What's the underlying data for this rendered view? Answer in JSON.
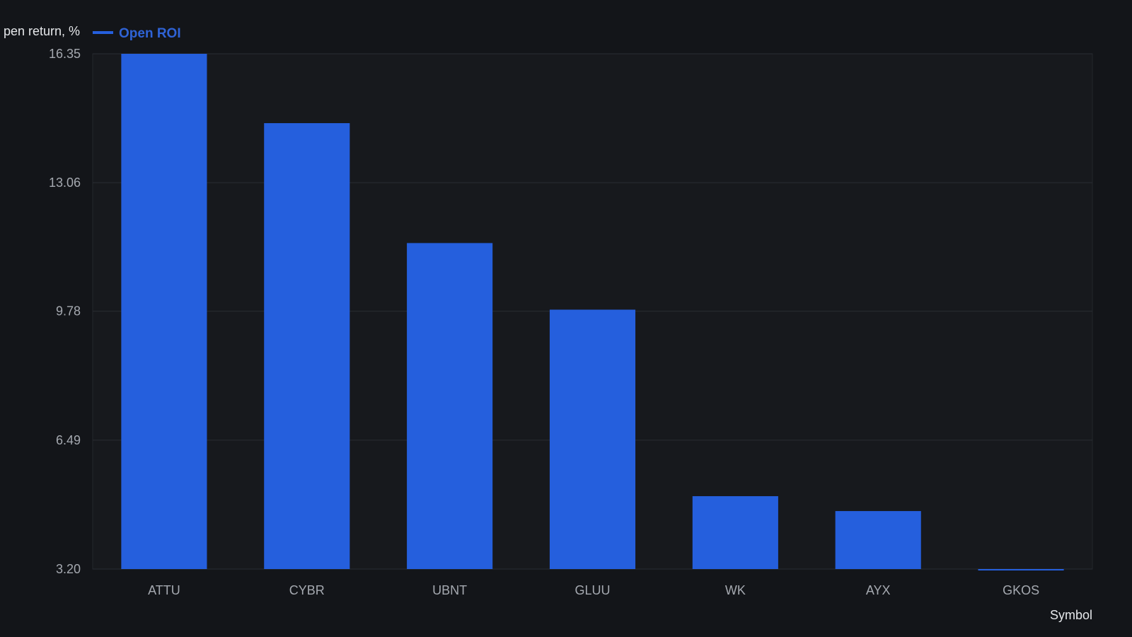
{
  "chart_data": {
    "type": "bar",
    "ylabel": "pen return, %",
    "xlabel": "Symbol",
    "categories": [
      "ATTU",
      "CYBR",
      "UBNT",
      "GLUU",
      "WK",
      "AYX",
      "GKOS"
    ],
    "series": [
      {
        "name": "Open ROI",
        "values": [
          16.35,
          14.58,
          11.52,
          9.82,
          5.06,
          4.68,
          3.17
        ]
      }
    ],
    "y_ticks": [
      "16.35",
      "13.06",
      "9.78",
      "6.49",
      "3.20"
    ],
    "ylim": [
      3.2,
      16.35
    ],
    "grid": true,
    "legend_position": "top-left",
    "colors": {
      "bar": "#255fdd",
      "background": "#131519",
      "plot_background": "#17191d",
      "grid": "#2a2d33",
      "legend_text": "#2f63d6"
    }
  }
}
